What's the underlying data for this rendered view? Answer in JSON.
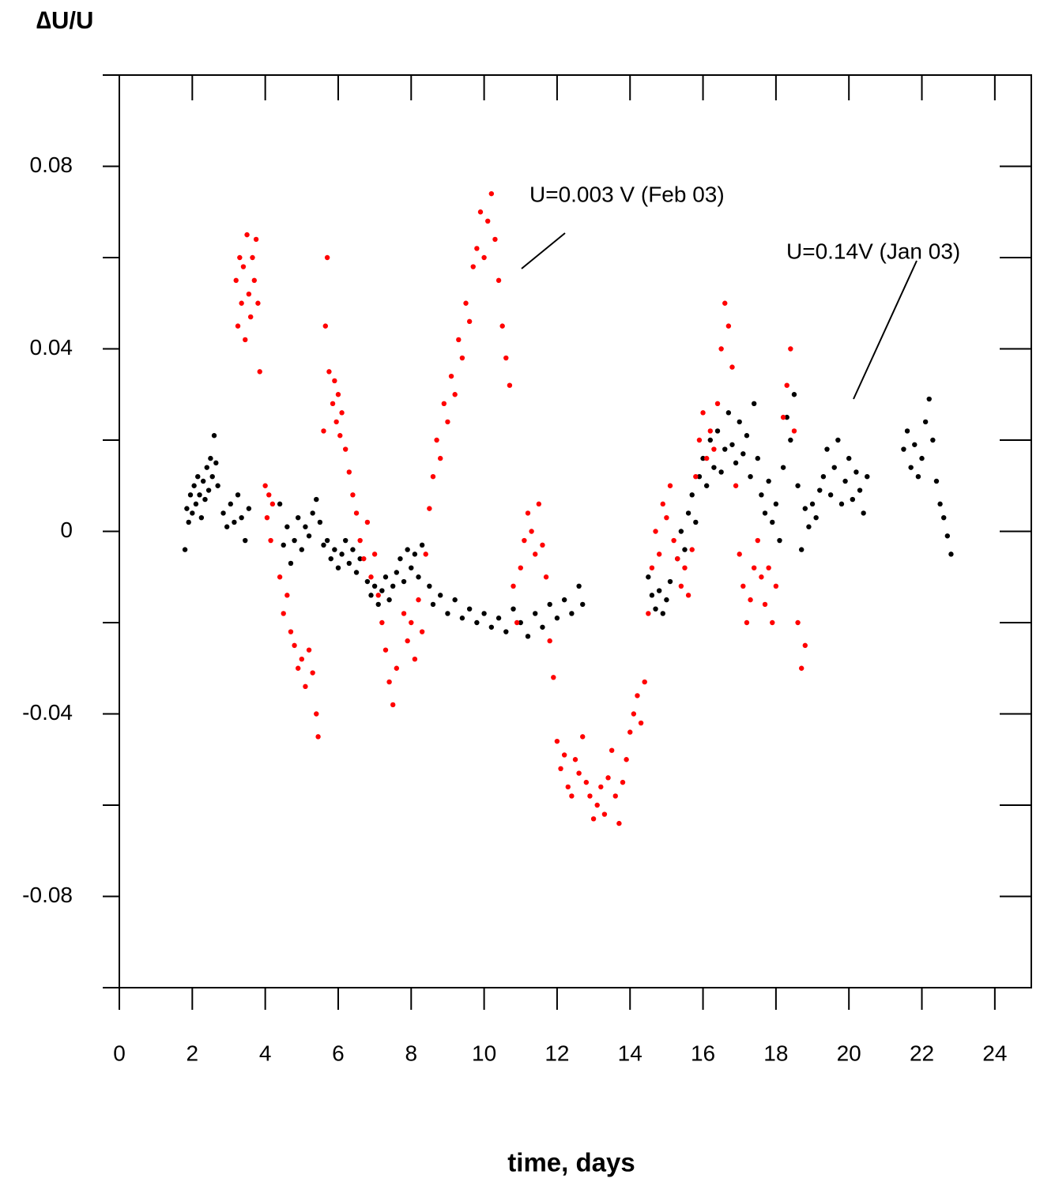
{
  "chart_data": {
    "type": "scatter",
    "title": "∆U/U",
    "x_label": "time, days",
    "xlim": [
      0,
      25
    ],
    "ylim": [
      -0.1,
      0.1
    ],
    "xticks": [
      0,
      2,
      4,
      6,
      8,
      10,
      12,
      14,
      16,
      18,
      20,
      22,
      24
    ],
    "yticks": [
      -0.08,
      -0.04,
      0,
      0.04,
      0.08
    ],
    "yticks_minor": [
      -0.1,
      -0.06,
      -0.02,
      0.02,
      0.06,
      0.1
    ],
    "series": [
      {
        "name": "U=0.14V  (Jan 03)",
        "color": "#000000",
        "x": [
          1.8,
          1.85,
          1.9,
          1.95,
          2.0,
          2.05,
          2.1,
          2.15,
          2.2,
          2.25,
          2.3,
          2.35,
          2.4,
          2.45,
          2.5,
          2.55,
          2.6,
          2.65,
          2.7,
          2.85,
          2.95,
          3.05,
          3.15,
          3.25,
          3.35,
          3.45,
          3.55,
          4.4,
          4.5,
          4.6,
          4.7,
          4.8,
          4.9,
          5.0,
          5.1,
          5.2,
          5.3,
          5.4,
          5.5,
          5.6,
          5.7,
          5.8,
          5.9,
          6.0,
          6.1,
          6.2,
          6.3,
          6.4,
          6.5,
          6.6,
          6.8,
          6.9,
          7.0,
          7.1,
          7.2,
          7.3,
          7.4,
          7.5,
          7.6,
          7.7,
          7.8,
          7.9,
          8.0,
          8.1,
          8.2,
          8.3,
          8.5,
          8.6,
          8.8,
          9.0,
          9.2,
          9.4,
          9.6,
          9.8,
          10.0,
          10.2,
          10.4,
          10.6,
          10.8,
          11.0,
          11.2,
          11.4,
          11.6,
          11.8,
          12.0,
          12.2,
          12.4,
          12.6,
          12.7,
          14.5,
          14.6,
          14.7,
          14.8,
          14.9,
          15.0,
          15.1,
          15.3,
          15.4,
          15.5,
          15.6,
          15.7,
          15.8,
          15.9,
          16.0,
          16.1,
          16.2,
          16.3,
          16.4,
          16.5,
          16.6,
          16.7,
          16.8,
          16.9,
          17.0,
          17.1,
          17.2,
          17.3,
          17.4,
          17.5,
          17.6,
          17.7,
          17.8,
          17.9,
          18.0,
          18.1,
          18.2,
          18.3,
          18.4,
          18.5,
          18.6,
          18.7,
          18.8,
          18.9,
          19.0,
          19.1,
          19.2,
          19.3,
          19.4,
          19.5,
          19.6,
          19.7,
          19.8,
          19.9,
          20.0,
          20.1,
          20.2,
          20.3,
          20.4,
          20.5,
          21.5,
          21.6,
          21.7,
          21.8,
          21.9,
          22.0,
          22.1,
          22.2,
          22.3,
          22.4,
          22.5,
          22.6,
          22.7,
          22.8
        ],
        "values": [
          -0.004,
          0.005,
          0.002,
          0.008,
          0.004,
          0.01,
          0.006,
          0.012,
          0.008,
          0.003,
          0.011,
          0.007,
          0.014,
          0.009,
          0.016,
          0.012,
          0.021,
          0.015,
          0.01,
          0.004,
          0.001,
          0.006,
          0.002,
          0.008,
          0.003,
          -0.002,
          0.005,
          0.006,
          -0.003,
          0.001,
          -0.007,
          -0.002,
          0.003,
          -0.004,
          0.001,
          -0.001,
          0.004,
          0.007,
          0.002,
          -0.003,
          -0.002,
          -0.006,
          -0.004,
          -0.008,
          -0.005,
          -0.002,
          -0.007,
          -0.004,
          -0.009,
          -0.006,
          -0.011,
          -0.014,
          -0.012,
          -0.016,
          -0.013,
          -0.01,
          -0.015,
          -0.012,
          -0.009,
          -0.006,
          -0.011,
          -0.004,
          -0.008,
          -0.005,
          -0.01,
          -0.003,
          -0.012,
          -0.016,
          -0.014,
          -0.018,
          -0.015,
          -0.019,
          -0.017,
          -0.02,
          -0.018,
          -0.021,
          -0.019,
          -0.022,
          -0.017,
          -0.02,
          -0.023,
          -0.018,
          -0.021,
          -0.016,
          -0.019,
          -0.015,
          -0.018,
          -0.012,
          -0.016,
          -0.01,
          -0.014,
          -0.017,
          -0.013,
          -0.018,
          -0.015,
          -0.011,
          -0.006,
          0.0,
          -0.004,
          0.004,
          0.008,
          0.002,
          0.012,
          0.016,
          0.01,
          0.02,
          0.014,
          0.022,
          0.013,
          0.018,
          0.026,
          0.019,
          0.015,
          0.024,
          0.017,
          0.021,
          0.012,
          0.028,
          0.016,
          0.008,
          0.004,
          0.011,
          0.002,
          0.006,
          -0.002,
          0.014,
          0.025,
          0.02,
          0.03,
          0.01,
          -0.004,
          0.005,
          0.001,
          0.006,
          0.003,
          0.009,
          0.012,
          0.018,
          0.008,
          0.014,
          0.02,
          0.006,
          0.011,
          0.016,
          0.007,
          0.013,
          0.009,
          0.004,
          0.012,
          0.018,
          0.022,
          0.014,
          0.019,
          0.012,
          0.016,
          0.024,
          0.029,
          0.02,
          0.011,
          0.006,
          0.003,
          -0.001,
          -0.005
        ]
      },
      {
        "name": "U=0.003 V (Feb 03)",
        "color": "#ff0000",
        "x": [
          3.2,
          3.25,
          3.3,
          3.35,
          3.4,
          3.45,
          3.5,
          3.55,
          3.6,
          3.65,
          3.7,
          3.75,
          3.8,
          3.85,
          4.0,
          4.05,
          4.1,
          4.15,
          4.2,
          4.4,
          4.5,
          4.6,
          4.7,
          4.8,
          4.9,
          5.0,
          5.1,
          5.2,
          5.3,
          5.4,
          5.45,
          5.6,
          5.65,
          5.7,
          5.75,
          5.85,
          5.9,
          5.95,
          6.0,
          6.05,
          6.1,
          6.2,
          6.3,
          6.4,
          6.5,
          6.6,
          6.7,
          6.8,
          6.9,
          7.0,
          7.1,
          7.2,
          7.3,
          7.4,
          7.5,
          7.6,
          7.8,
          7.9,
          8.0,
          8.1,
          8.2,
          8.3,
          8.4,
          8.5,
          8.6,
          8.7,
          8.8,
          8.9,
          9.0,
          9.1,
          9.2,
          9.3,
          9.4,
          9.5,
          9.6,
          9.7,
          9.8,
          9.9,
          10.0,
          10.1,
          10.2,
          10.3,
          10.4,
          10.5,
          10.6,
          10.7,
          10.8,
          10.9,
          11.0,
          11.1,
          11.2,
          11.3,
          11.4,
          11.5,
          11.6,
          11.7,
          11.8,
          11.9,
          12.0,
          12.1,
          12.2,
          12.3,
          12.4,
          12.5,
          12.6,
          12.7,
          12.8,
          12.9,
          13.0,
          13.1,
          13.2,
          13.3,
          13.4,
          13.5,
          13.6,
          13.7,
          13.8,
          13.9,
          14.0,
          14.1,
          14.2,
          14.3,
          14.4,
          14.5,
          14.6,
          14.7,
          14.8,
          14.9,
          15.0,
          15.1,
          15.2,
          15.3,
          15.4,
          15.5,
          15.6,
          15.7,
          15.8,
          15.9,
          16.0,
          16.1,
          16.2,
          16.3,
          16.4,
          16.5,
          16.6,
          16.7,
          16.8,
          16.9,
          17.0,
          17.1,
          17.2,
          17.3,
          17.4,
          17.5,
          17.6,
          17.7,
          17.8,
          17.9,
          18.0,
          18.2,
          18.3,
          18.4,
          18.5,
          18.6,
          18.7,
          18.8
        ],
        "values": [
          0.055,
          0.045,
          0.06,
          0.05,
          0.058,
          0.042,
          0.065,
          0.052,
          0.047,
          0.06,
          0.055,
          0.064,
          0.05,
          0.035,
          0.01,
          0.003,
          0.008,
          -0.002,
          0.006,
          -0.01,
          -0.018,
          -0.014,
          -0.022,
          -0.025,
          -0.03,
          -0.028,
          -0.034,
          -0.026,
          -0.031,
          -0.04,
          -0.045,
          0.022,
          0.045,
          0.06,
          0.035,
          0.028,
          0.033,
          0.024,
          0.03,
          0.021,
          0.026,
          0.018,
          0.013,
          0.008,
          0.004,
          -0.002,
          -0.006,
          0.002,
          -0.01,
          -0.005,
          -0.014,
          -0.02,
          -0.026,
          -0.033,
          -0.038,
          -0.03,
          -0.018,
          -0.024,
          -0.02,
          -0.028,
          -0.015,
          -0.022,
          -0.005,
          0.005,
          0.012,
          0.02,
          0.016,
          0.028,
          0.024,
          0.034,
          0.03,
          0.042,
          0.038,
          0.05,
          0.046,
          0.058,
          0.062,
          0.07,
          0.06,
          0.068,
          0.074,
          0.064,
          0.055,
          0.045,
          0.038,
          0.032,
          -0.012,
          -0.02,
          -0.008,
          -0.002,
          0.004,
          0.0,
          -0.005,
          0.006,
          -0.003,
          -0.01,
          -0.024,
          -0.032,
          -0.046,
          -0.052,
          -0.049,
          -0.056,
          -0.058,
          -0.05,
          -0.053,
          -0.045,
          -0.055,
          -0.058,
          -0.063,
          -0.06,
          -0.056,
          -0.062,
          -0.054,
          -0.048,
          -0.058,
          -0.064,
          -0.055,
          -0.05,
          -0.044,
          -0.04,
          -0.036,
          -0.042,
          -0.033,
          -0.018,
          -0.008,
          0.0,
          -0.005,
          0.006,
          0.003,
          0.01,
          -0.002,
          -0.006,
          -0.012,
          -0.008,
          -0.014,
          -0.004,
          0.012,
          0.02,
          0.026,
          0.016,
          0.022,
          0.018,
          0.028,
          0.04,
          0.05,
          0.045,
          0.036,
          0.01,
          -0.005,
          -0.012,
          -0.02,
          -0.015,
          -0.008,
          -0.002,
          -0.01,
          -0.016,
          -0.008,
          -0.02,
          -0.012,
          0.025,
          0.032,
          0.04,
          0.022,
          -0.02,
          -0.03,
          -0.025
        ]
      }
    ]
  }
}
